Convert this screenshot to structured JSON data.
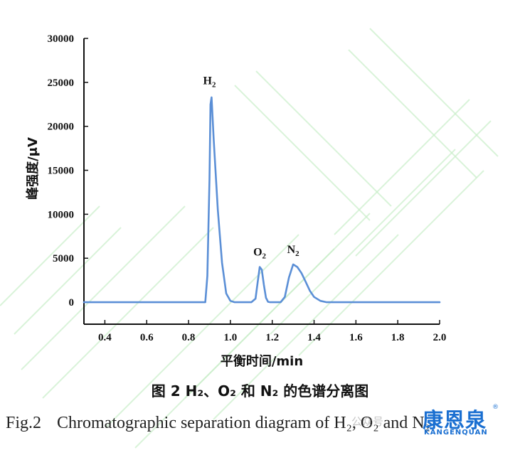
{
  "chart_data": {
    "type": "line",
    "xlabel": "平衡时间/min",
    "ylabel": "峰强度/μV",
    "xlim": [
      0.3,
      2.0
    ],
    "ylim": [
      -2500,
      30000
    ],
    "xticks": [
      "0.4",
      "0.6",
      "0.8",
      "1.0",
      "1.2",
      "1.4",
      "1.6",
      "1.8",
      "2.0"
    ],
    "yticks": [
      "0",
      "5000",
      "10000",
      "15000",
      "20000",
      "25000",
      "30000"
    ],
    "grid": false,
    "line_color": "#5b8fd6",
    "series": [
      {
        "x": [
          0.3,
          0.85,
          0.88,
          0.89,
          0.9,
          0.905,
          0.91,
          0.92,
          0.94,
          0.96,
          0.98,
          1.0,
          1.02,
          1.1,
          1.12,
          1.13,
          1.14,
          1.15,
          1.16,
          1.17,
          1.18,
          1.19,
          1.24,
          1.26,
          1.28,
          1.3,
          1.32,
          1.34,
          1.36,
          1.38,
          1.4,
          1.43,
          1.46,
          2.0
        ],
        "y": [
          0,
          0,
          0,
          3000,
          14000,
          22500,
          23300,
          18500,
          10500,
          4500,
          1000,
          150,
          0,
          0,
          400,
          2200,
          4000,
          3700,
          2000,
          500,
          50,
          0,
          0,
          600,
          2800,
          4300,
          4000,
          3300,
          2300,
          1300,
          600,
          150,
          0,
          0
        ]
      }
    ],
    "annotations": [
      {
        "main": "H",
        "sub": "2",
        "x": 0.9,
        "y": 24800
      },
      {
        "main": "O",
        "sub": "2",
        "x": 1.14,
        "y": 5300
      },
      {
        "main": "N",
        "sub": "2",
        "x": 1.3,
        "y": 5600
      }
    ]
  },
  "caption": {
    "cn": "图 2 H₂、O₂ 和 N₂ 的色谱分离图",
    "en_num": "Fig.2",
    "en_text": "Chromatographic separation diagram of H₂, O₂ and N₂"
  },
  "watermark": {
    "logo": "康恩泉",
    "sub": "KANGENQUAN",
    "reg": "®",
    "account": "公众号"
  }
}
